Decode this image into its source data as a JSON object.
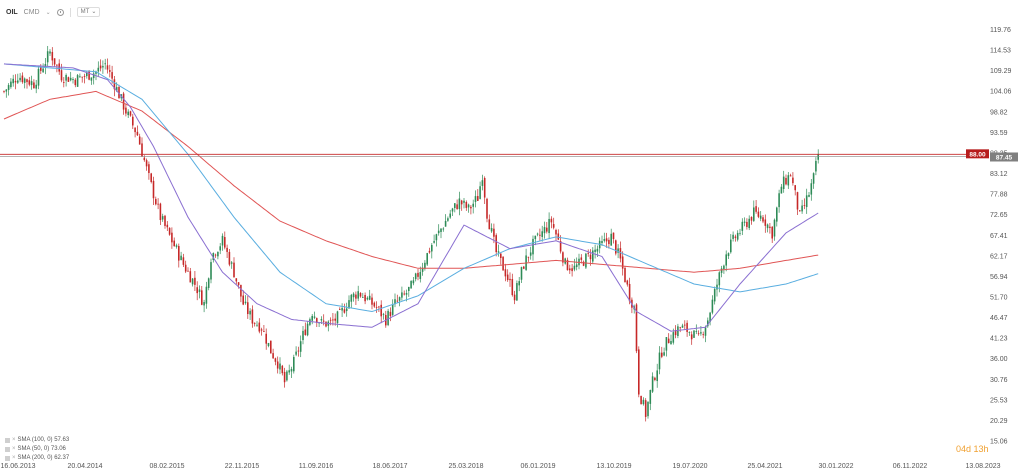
{
  "toolbar": {
    "symbol": "OIL",
    "type": "CMD",
    "interval": "MT"
  },
  "colors": {
    "bull": "#2e8b57",
    "bear": "#c62828",
    "sma100": "#5aaee0",
    "sma50": "#8a6fd1",
    "sma200": "#e05555",
    "bid_line": "#c62828",
    "ask_line": "#888888",
    "bid_tag": "#b71c1c",
    "ask_tag": "#7f7f7f"
  },
  "legend": [
    {
      "label": "SMA (100, 0) 57.63"
    },
    {
      "label": "SMA (50, 0) 73.06"
    },
    {
      "label": "SMA (200, 0) 62.37"
    }
  ],
  "countdown": "04d 13h",
  "chart_data": {
    "type": "candlestick",
    "y_axis": {
      "min": 15.06,
      "max": 119.76,
      "ticks": [
        "119.76",
        "114.53",
        "109.29",
        "104.06",
        "98.82",
        "93.59",
        "88.35",
        "83.12",
        "77.88",
        "72.65",
        "67.41",
        "62.17",
        "56.94",
        "51.70",
        "46.47",
        "41.23",
        "36.00",
        "30.76",
        "25.53",
        "20.29",
        "15.06"
      ]
    },
    "x_axis": {
      "ticks": [
        "16.06.2013",
        "20.04.2014",
        "08.02.2015",
        "22.11.2015",
        "11.09.2016",
        "18.06.2017",
        "25.03.2018",
        "06.01.2019",
        "13.10.2019",
        "19.07.2020",
        "25.04.2021",
        "30.01.2022",
        "06.11.2022",
        "13.08.2023"
      ]
    },
    "price_tags": {
      "bid": "88.00",
      "ask": "87.45"
    },
    "price_anchors": [
      [
        0,
        104
      ],
      [
        6,
        108
      ],
      [
        13,
        106
      ],
      [
        20,
        114
      ],
      [
        25,
        108
      ],
      [
        31,
        107
      ],
      [
        40,
        109
      ],
      [
        44,
        111
      ],
      [
        48,
        106
      ],
      [
        53,
        99
      ],
      [
        58,
        93
      ],
      [
        63,
        82
      ],
      [
        68,
        72
      ],
      [
        73,
        66
      ],
      [
        78,
        60
      ],
      [
        83,
        55
      ],
      [
        87,
        50
      ],
      [
        90,
        62
      ],
      [
        95,
        66
      ],
      [
        100,
        58
      ],
      [
        104,
        50
      ],
      [
        108,
        46
      ],
      [
        112,
        44
      ],
      [
        116,
        38
      ],
      [
        119,
        35
      ],
      [
        122,
        30
      ],
      [
        126,
        35
      ],
      [
        130,
        42
      ],
      [
        134,
        48
      ],
      [
        138,
        45
      ],
      [
        142,
        45
      ],
      [
        146,
        47
      ],
      [
        150,
        51
      ],
      [
        154,
        53
      ],
      [
        158,
        51
      ],
      [
        162,
        49
      ],
      [
        166,
        46
      ],
      [
        170,
        50
      ],
      [
        174,
        52
      ],
      [
        178,
        55
      ],
      [
        182,
        60
      ],
      [
        186,
        65
      ],
      [
        190,
        69
      ],
      [
        194,
        73
      ],
      [
        198,
        76
      ],
      [
        202,
        74
      ],
      [
        206,
        77
      ],
      [
        208,
        83
      ],
      [
        210,
        73
      ],
      [
        214,
        63
      ],
      [
        218,
        58
      ],
      [
        222,
        52
      ],
      [
        226,
        60
      ],
      [
        230,
        65
      ],
      [
        234,
        68
      ],
      [
        238,
        71
      ],
      [
        241,
        66
      ],
      [
        244,
        60
      ],
      [
        248,
        59
      ],
      [
        252,
        61
      ],
      [
        256,
        63
      ],
      [
        260,
        65
      ],
      [
        264,
        67
      ],
      [
        268,
        61
      ],
      [
        272,
        52
      ],
      [
        274,
        49
      ],
      [
        276,
        28
      ],
      [
        279,
        22
      ],
      [
        282,
        30
      ],
      [
        286,
        38
      ],
      [
        290,
        42
      ],
      [
        294,
        44
      ],
      [
        298,
        43
      ],
      [
        302,
        41
      ],
      [
        306,
        46
      ],
      [
        310,
        55
      ],
      [
        314,
        63
      ],
      [
        318,
        67
      ],
      [
        322,
        70
      ],
      [
        326,
        73
      ],
      [
        330,
        72
      ],
      [
        334,
        68
      ],
      [
        338,
        80
      ],
      [
        342,
        83
      ],
      [
        346,
        72
      ],
      [
        350,
        78
      ],
      [
        352,
        82
      ],
      [
        354,
        88
      ]
    ],
    "sma50_anchors": [
      [
        0,
        111
      ],
      [
        30,
        110
      ],
      [
        45,
        107
      ],
      [
        55,
        100
      ],
      [
        65,
        90
      ],
      [
        80,
        72
      ],
      [
        95,
        58
      ],
      [
        110,
        50
      ],
      [
        125,
        46
      ],
      [
        140,
        45
      ],
      [
        160,
        44
      ],
      [
        180,
        50
      ],
      [
        200,
        70
      ],
      [
        220,
        64
      ],
      [
        240,
        66
      ],
      [
        260,
        62
      ],
      [
        275,
        48
      ],
      [
        290,
        43
      ],
      [
        305,
        44
      ],
      [
        320,
        55
      ],
      [
        340,
        68
      ],
      [
        354,
        73.06
      ]
    ],
    "sma100_anchors": [
      [
        0,
        111
      ],
      [
        40,
        109
      ],
      [
        60,
        102
      ],
      [
        80,
        88
      ],
      [
        100,
        72
      ],
      [
        120,
        58
      ],
      [
        140,
        50
      ],
      [
        160,
        48
      ],
      [
        180,
        52
      ],
      [
        200,
        59
      ],
      [
        220,
        64
      ],
      [
        240,
        67
      ],
      [
        260,
        65
      ],
      [
        280,
        60
      ],
      [
        300,
        55
      ],
      [
        320,
        53
      ],
      [
        340,
        55
      ],
      [
        354,
        57.63
      ]
    ],
    "sma200_anchors": [
      [
        0,
        97
      ],
      [
        20,
        102
      ],
      [
        40,
        104
      ],
      [
        60,
        99
      ],
      [
        80,
        90
      ],
      [
        100,
        80
      ],
      [
        120,
        71
      ],
      [
        140,
        66
      ],
      [
        160,
        62
      ],
      [
        180,
        59
      ],
      [
        200,
        59
      ],
      [
        220,
        60
      ],
      [
        240,
        61
      ],
      [
        260,
        60
      ],
      [
        280,
        59
      ],
      [
        300,
        58
      ],
      [
        320,
        59
      ],
      [
        340,
        61
      ],
      [
        354,
        62.37
      ]
    ]
  }
}
